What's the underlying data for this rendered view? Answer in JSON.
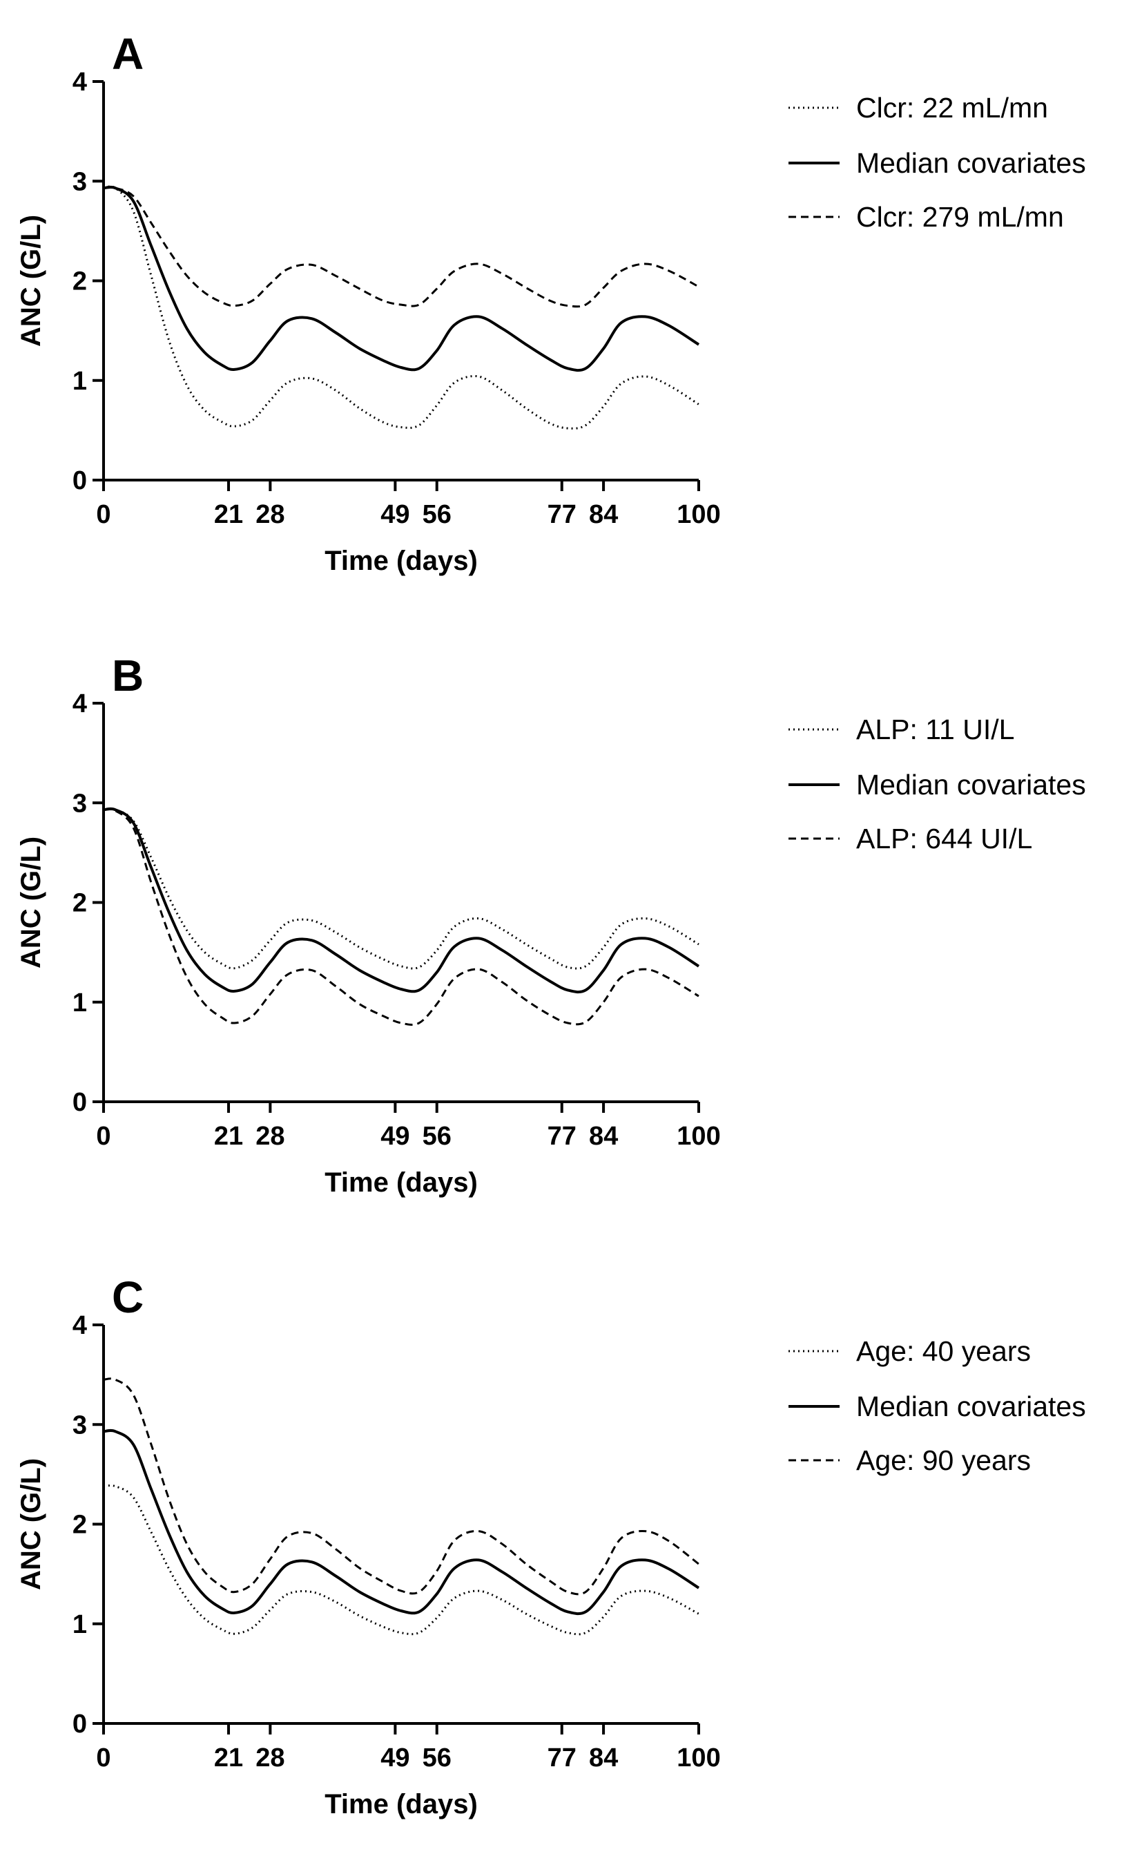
{
  "chart_data": [
    {
      "type": "line",
      "panel": "A",
      "xlabel": "Time (days)",
      "ylabel": "ANC (G/L)",
      "xlim": [
        0,
        100
      ],
      "ylim": [
        0,
        4
      ],
      "xticks": [
        0,
        21,
        28,
        49,
        56,
        77,
        84,
        100
      ],
      "yticks": [
        0,
        1,
        2,
        3,
        4
      ],
      "legend_position": "right",
      "series": [
        {
          "name": "Clcr: 22 mL/mn",
          "style": "dotted",
          "x": [
            0,
            2,
            5,
            8,
            11,
            14,
            17,
            20,
            22,
            25,
            28,
            31,
            35,
            39,
            43,
            47,
            50,
            53,
            56,
            59,
            63,
            67,
            71,
            75,
            78,
            81,
            84,
            87,
            91,
            95,
            100
          ],
          "y": [
            2.93,
            2.93,
            2.7,
            2.05,
            1.4,
            0.95,
            0.7,
            0.58,
            0.54,
            0.6,
            0.8,
            0.98,
            1.02,
            0.9,
            0.72,
            0.58,
            0.53,
            0.55,
            0.75,
            0.98,
            1.04,
            0.9,
            0.72,
            0.57,
            0.52,
            0.55,
            0.74,
            0.97,
            1.04,
            0.95,
            0.76
          ]
        },
        {
          "name": "Median covariates",
          "style": "solid",
          "x": [
            0,
            2,
            5,
            8,
            11,
            14,
            17,
            20,
            22,
            25,
            28,
            31,
            35,
            39,
            43,
            47,
            50,
            53,
            56,
            59,
            63,
            67,
            71,
            75,
            78,
            81,
            84,
            87,
            91,
            95,
            100
          ],
          "y": [
            2.93,
            2.93,
            2.8,
            2.35,
            1.9,
            1.52,
            1.28,
            1.15,
            1.11,
            1.18,
            1.4,
            1.6,
            1.62,
            1.48,
            1.32,
            1.2,
            1.13,
            1.12,
            1.3,
            1.56,
            1.64,
            1.52,
            1.36,
            1.21,
            1.12,
            1.12,
            1.32,
            1.58,
            1.64,
            1.55,
            1.36
          ]
        },
        {
          "name": "Clcr: 279 mL/mn",
          "style": "dashed",
          "x": [
            0,
            2,
            5,
            8,
            11,
            14,
            17,
            20,
            22,
            25,
            28,
            31,
            35,
            39,
            43,
            47,
            50,
            53,
            56,
            59,
            63,
            67,
            71,
            75,
            78,
            81,
            84,
            87,
            91,
            95,
            100
          ],
          "y": [
            2.93,
            2.93,
            2.85,
            2.58,
            2.3,
            2.05,
            1.88,
            1.78,
            1.75,
            1.8,
            1.97,
            2.12,
            2.16,
            2.05,
            1.92,
            1.8,
            1.76,
            1.76,
            1.92,
            2.1,
            2.17,
            2.07,
            1.93,
            1.8,
            1.75,
            1.76,
            1.93,
            2.1,
            2.17,
            2.1,
            1.94
          ]
        }
      ]
    },
    {
      "type": "line",
      "panel": "B",
      "xlabel": "Time (days)",
      "ylabel": "ANC (G/L)",
      "xlim": [
        0,
        100
      ],
      "ylim": [
        0,
        4
      ],
      "xticks": [
        0,
        21,
        28,
        49,
        56,
        77,
        84,
        100
      ],
      "yticks": [
        0,
        1,
        2,
        3,
        4
      ],
      "legend_position": "right",
      "series": [
        {
          "name": "ALP: 11 UI/L",
          "style": "dotted",
          "x": [
            0,
            2,
            5,
            8,
            11,
            14,
            17,
            20,
            22,
            25,
            28,
            31,
            35,
            39,
            43,
            47,
            50,
            53,
            56,
            59,
            63,
            67,
            71,
            75,
            78,
            81,
            84,
            87,
            91,
            95,
            100
          ],
          "y": [
            2.93,
            2.93,
            2.82,
            2.45,
            2.05,
            1.72,
            1.5,
            1.38,
            1.34,
            1.42,
            1.62,
            1.8,
            1.82,
            1.7,
            1.55,
            1.43,
            1.36,
            1.35,
            1.52,
            1.76,
            1.84,
            1.73,
            1.58,
            1.44,
            1.35,
            1.36,
            1.55,
            1.78,
            1.84,
            1.76,
            1.58
          ]
        },
        {
          "name": "Median covariates",
          "style": "solid",
          "x": [
            0,
            2,
            5,
            8,
            11,
            14,
            17,
            20,
            22,
            25,
            28,
            31,
            35,
            39,
            43,
            47,
            50,
            53,
            56,
            59,
            63,
            67,
            71,
            75,
            78,
            81,
            84,
            87,
            91,
            95,
            100
          ],
          "y": [
            2.93,
            2.93,
            2.8,
            2.35,
            1.9,
            1.52,
            1.28,
            1.15,
            1.11,
            1.18,
            1.4,
            1.6,
            1.62,
            1.48,
            1.32,
            1.2,
            1.13,
            1.12,
            1.3,
            1.56,
            1.64,
            1.52,
            1.36,
            1.21,
            1.12,
            1.12,
            1.32,
            1.58,
            1.64,
            1.55,
            1.36
          ]
        },
        {
          "name": "ALP: 644 UI/L",
          "style": "dashed",
          "x": [
            0,
            2,
            5,
            8,
            11,
            14,
            17,
            20,
            22,
            25,
            28,
            31,
            35,
            39,
            43,
            47,
            50,
            53,
            56,
            59,
            63,
            67,
            71,
            75,
            78,
            81,
            84,
            87,
            91,
            95,
            100
          ],
          "y": [
            2.93,
            2.92,
            2.75,
            2.2,
            1.68,
            1.25,
            0.98,
            0.84,
            0.79,
            0.86,
            1.08,
            1.28,
            1.32,
            1.16,
            0.98,
            0.86,
            0.79,
            0.79,
            0.98,
            1.24,
            1.33,
            1.2,
            1.02,
            0.87,
            0.79,
            0.8,
            1.0,
            1.25,
            1.33,
            1.24,
            1.06
          ]
        }
      ]
    },
    {
      "type": "line",
      "panel": "C",
      "xlabel": "Time (days)",
      "ylabel": "ANC (G/L)",
      "xlim": [
        0,
        100
      ],
      "ylim": [
        0,
        4
      ],
      "xticks": [
        0,
        21,
        28,
        49,
        56,
        77,
        84,
        100
      ],
      "yticks": [
        0,
        1,
        2,
        3,
        4
      ],
      "legend_position": "right",
      "series": [
        {
          "name": "Age: 40 years",
          "style": "dotted",
          "x": [
            0,
            2,
            5,
            8,
            11,
            14,
            17,
            20,
            22,
            25,
            28,
            31,
            35,
            39,
            43,
            47,
            50,
            53,
            56,
            59,
            63,
            67,
            71,
            75,
            78,
            81,
            84,
            87,
            91,
            95,
            100
          ],
          "y": [
            2.38,
            2.38,
            2.27,
            1.92,
            1.55,
            1.25,
            1.05,
            0.94,
            0.9,
            0.96,
            1.14,
            1.3,
            1.32,
            1.22,
            1.08,
            0.97,
            0.91,
            0.91,
            1.06,
            1.26,
            1.33,
            1.24,
            1.1,
            0.98,
            0.91,
            0.91,
            1.07,
            1.28,
            1.33,
            1.26,
            1.1
          ]
        },
        {
          "name": "Median covariates",
          "style": "solid",
          "x": [
            0,
            2,
            5,
            8,
            11,
            14,
            17,
            20,
            22,
            25,
            28,
            31,
            35,
            39,
            43,
            47,
            50,
            53,
            56,
            59,
            63,
            67,
            71,
            75,
            78,
            81,
            84,
            87,
            91,
            95,
            100
          ],
          "y": [
            2.93,
            2.93,
            2.8,
            2.35,
            1.9,
            1.52,
            1.28,
            1.15,
            1.11,
            1.18,
            1.4,
            1.6,
            1.62,
            1.48,
            1.32,
            1.2,
            1.13,
            1.12,
            1.3,
            1.56,
            1.64,
            1.52,
            1.36,
            1.21,
            1.12,
            1.12,
            1.32,
            1.58,
            1.64,
            1.55,
            1.36
          ]
        },
        {
          "name": "Age: 90 years",
          "style": "dashed",
          "x": [
            0,
            2,
            5,
            8,
            11,
            14,
            17,
            20,
            22,
            25,
            28,
            31,
            35,
            39,
            43,
            47,
            50,
            53,
            56,
            59,
            63,
            67,
            71,
            75,
            78,
            81,
            84,
            87,
            91,
            95,
            100
          ],
          "y": [
            3.45,
            3.45,
            3.3,
            2.8,
            2.25,
            1.8,
            1.52,
            1.37,
            1.32,
            1.4,
            1.65,
            1.88,
            1.91,
            1.75,
            1.56,
            1.42,
            1.33,
            1.32,
            1.53,
            1.84,
            1.93,
            1.8,
            1.6,
            1.43,
            1.32,
            1.32,
            1.56,
            1.86,
            1.93,
            1.83,
            1.6
          ]
        }
      ]
    }
  ]
}
